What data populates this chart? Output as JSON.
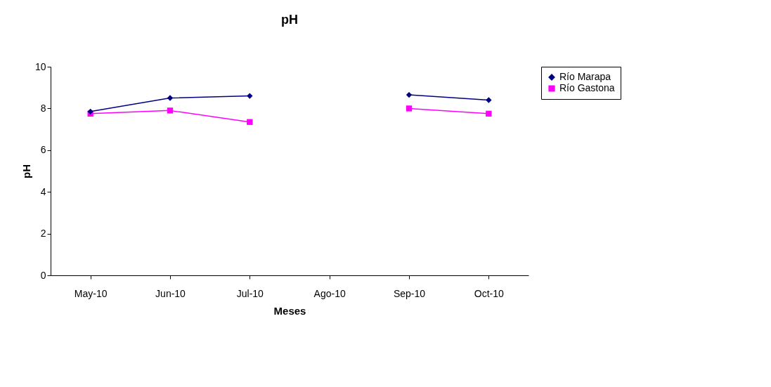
{
  "chart_data": {
    "type": "line",
    "title": "pH",
    "xlabel": "Meses",
    "ylabel": "pH",
    "categories": [
      "May-10",
      "Jun-10",
      "Jul-10",
      "Ago-10",
      "Sep-10",
      "Oct-10"
    ],
    "series": [
      {
        "name": "Río Marapa",
        "color": "#000080",
        "marker": "diamond",
        "values": [
          7.85,
          8.5,
          8.6,
          null,
          8.65,
          8.4
        ]
      },
      {
        "name": "Río Gastona",
        "color": "#ff00ff",
        "marker": "square",
        "values": [
          7.75,
          7.9,
          7.35,
          null,
          8.0,
          7.75
        ]
      }
    ],
    "ylim": [
      0,
      10
    ],
    "yticks": [
      0,
      2,
      4,
      6,
      8,
      10
    ],
    "grid": false,
    "legend": "right"
  }
}
